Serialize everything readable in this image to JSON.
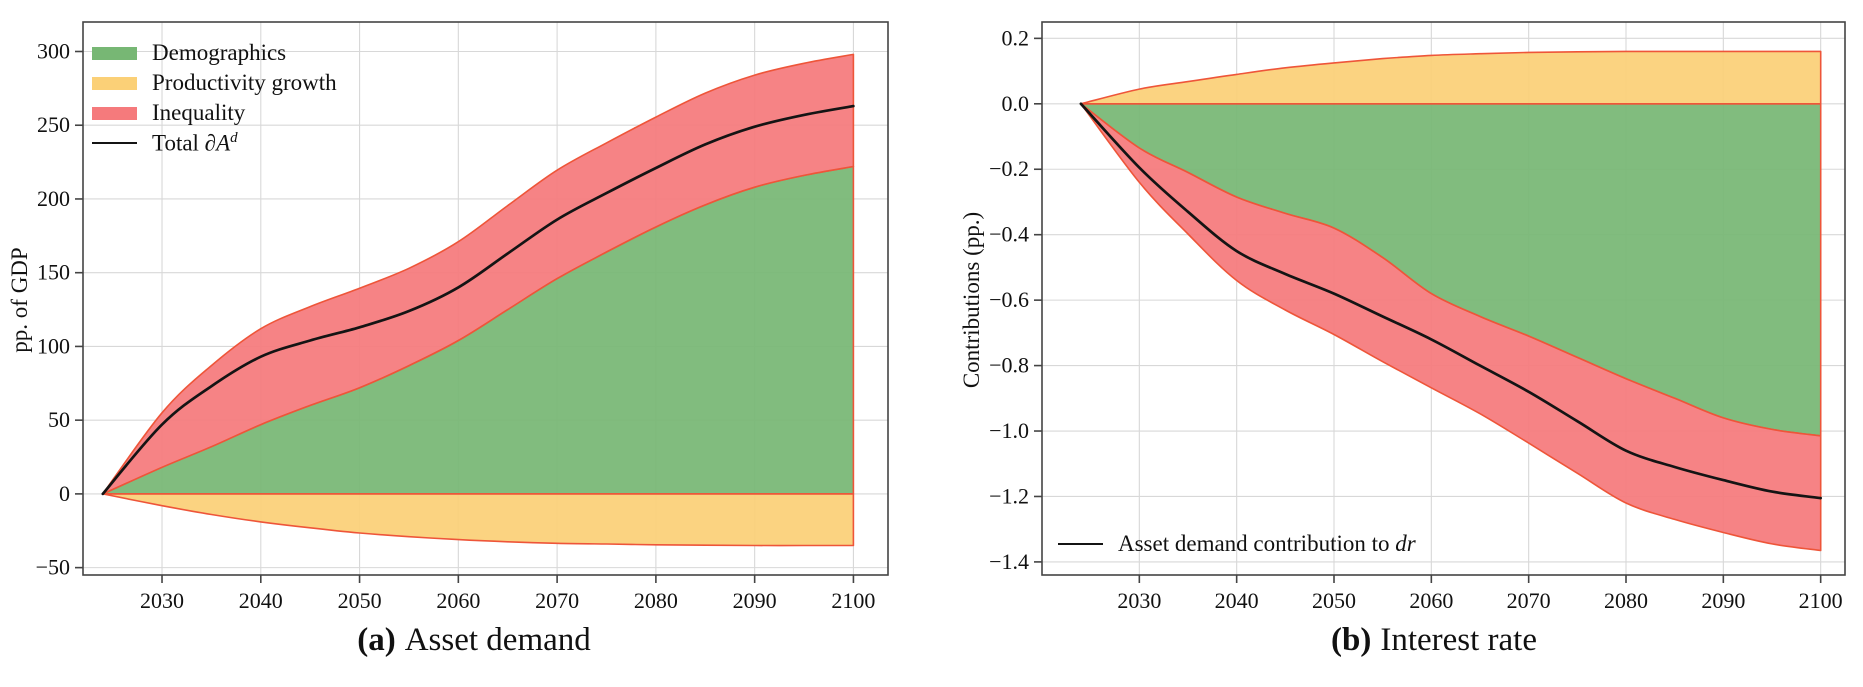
{
  "figure": {
    "captions": [
      {
        "tag": "(a)",
        "text": "Asset demand"
      },
      {
        "tag": "(b)",
        "text": "Interest rate"
      }
    ]
  },
  "colors": {
    "demographics": "#77b774",
    "productivity": "#fbd077",
    "inequality": "#f57a7c",
    "area_edge": "#ee5539",
    "total_line": "#141414",
    "grid": "#d8d8d8",
    "spine": "#444444",
    "text": "#111111"
  },
  "chart_data": [
    {
      "type": "area",
      "subplot": "a",
      "title": "Asset demand",
      "xlabel": "",
      "ylabel": "pp. of GDP",
      "grid": true,
      "legend_position": "upper-left",
      "xlim": [
        2022,
        2103.5
      ],
      "ylim": [
        -55,
        320
      ],
      "xticks": [
        2030,
        2040,
        2050,
        2060,
        2070,
        2080,
        2090,
        2100
      ],
      "yticks": [
        -50,
        0,
        50,
        100,
        150,
        200,
        250,
        300
      ],
      "ytick_labels": [
        "−50",
        "0",
        "50",
        "100",
        "150",
        "200",
        "250",
        "300"
      ],
      "x": [
        2024,
        2030,
        2035,
        2040,
        2045,
        2050,
        2055,
        2060,
        2065,
        2070,
        2075,
        2080,
        2085,
        2090,
        2095,
        2100
      ],
      "series": [
        {
          "name": "Demographics",
          "role": "area",
          "base": "zero",
          "color_key": "demographics",
          "values": [
            0,
            18,
            32,
            47,
            60,
            72,
            87,
            104,
            125,
            146,
            164,
            181,
            196,
            208,
            216,
            222
          ]
        },
        {
          "name": "Productivity growth",
          "role": "area",
          "base": "zero",
          "color_key": "productivity",
          "values": [
            0,
            -8,
            -14,
            -19,
            -23,
            -26.5,
            -29,
            -31,
            -32.5,
            -33.5,
            -34,
            -34.5,
            -34.8,
            -35,
            -35,
            -35
          ]
        },
        {
          "name": "Inequality",
          "role": "area",
          "base": "Demographics",
          "color_key": "inequality",
          "values": [
            0,
            37,
            55,
            65,
            67,
            67.5,
            66,
            67,
            70.5,
            73.5,
            74,
            74.5,
            75.8,
            76,
            76,
            76
          ]
        },
        {
          "name": "Total ∂A^d",
          "label_prefix": "Total ∂",
          "label_symbol": "A",
          "label_sup": "d",
          "role": "line",
          "color_key": "total_line",
          "values": [
            0,
            47,
            73,
            93,
            104,
            113,
            124,
            140,
            163,
            186,
            204,
            221,
            237,
            249,
            257,
            263
          ]
        }
      ]
    },
    {
      "type": "area",
      "subplot": "b",
      "title": "Interest rate",
      "xlabel": "",
      "ylabel": "Contributions (pp.)",
      "grid": true,
      "legend_position": "lower-left",
      "xlim": [
        2020,
        2102.5
      ],
      "ylim": [
        -1.44,
        0.25
      ],
      "xticks": [
        2030,
        2040,
        2050,
        2060,
        2070,
        2080,
        2090,
        2100
      ],
      "yticks": [
        0.2,
        0.0,
        -0.2,
        -0.4,
        -0.6,
        -0.8,
        -1.0,
        -1.2,
        -1.4
      ],
      "ytick_labels": [
        "0.2",
        "0.0",
        "−0.2",
        "−0.4",
        "−0.6",
        "−0.8",
        "−1.0",
        "−1.2",
        "−1.4"
      ],
      "x": [
        2024,
        2030,
        2035,
        2040,
        2045,
        2050,
        2055,
        2060,
        2065,
        2070,
        2075,
        2080,
        2085,
        2090,
        2095,
        2100
      ],
      "series": [
        {
          "name": "Demographics",
          "role": "area",
          "base": "zero",
          "color_key": "demographics",
          "values": [
            0,
            -0.135,
            -0.21,
            -0.285,
            -0.335,
            -0.38,
            -0.47,
            -0.58,
            -0.65,
            -0.71,
            -0.775,
            -0.84,
            -0.9,
            -0.96,
            -0.995,
            -1.015
          ]
        },
        {
          "name": "Productivity growth",
          "role": "area",
          "base": "zero",
          "color_key": "productivity",
          "values": [
            0,
            0.045,
            0.068,
            0.09,
            0.11,
            0.125,
            0.138,
            0.148,
            0.153,
            0.157,
            0.159,
            0.16,
            0.16,
            0.16,
            0.16,
            0.16
          ]
        },
        {
          "name": "Inequality",
          "role": "area",
          "base": "Demographics",
          "color_key": "inequality",
          "values": [
            0,
            -0.105,
            -0.188,
            -0.255,
            -0.295,
            -0.325,
            -0.318,
            -0.288,
            -0.297,
            -0.327,
            -0.354,
            -0.38,
            -0.37,
            -0.35,
            -0.35,
            -0.35
          ]
        },
        {
          "name": "Asset demand contribution to dr",
          "label_prefix": "Asset demand contribution to ",
          "label_italic": "dr",
          "role": "line",
          "color_key": "total_line",
          "values": [
            0,
            -0.195,
            -0.33,
            -0.45,
            -0.52,
            -0.58,
            -0.65,
            -0.72,
            -0.8,
            -0.88,
            -0.97,
            -1.06,
            -1.11,
            -1.15,
            -1.185,
            -1.205
          ]
        }
      ]
    }
  ]
}
